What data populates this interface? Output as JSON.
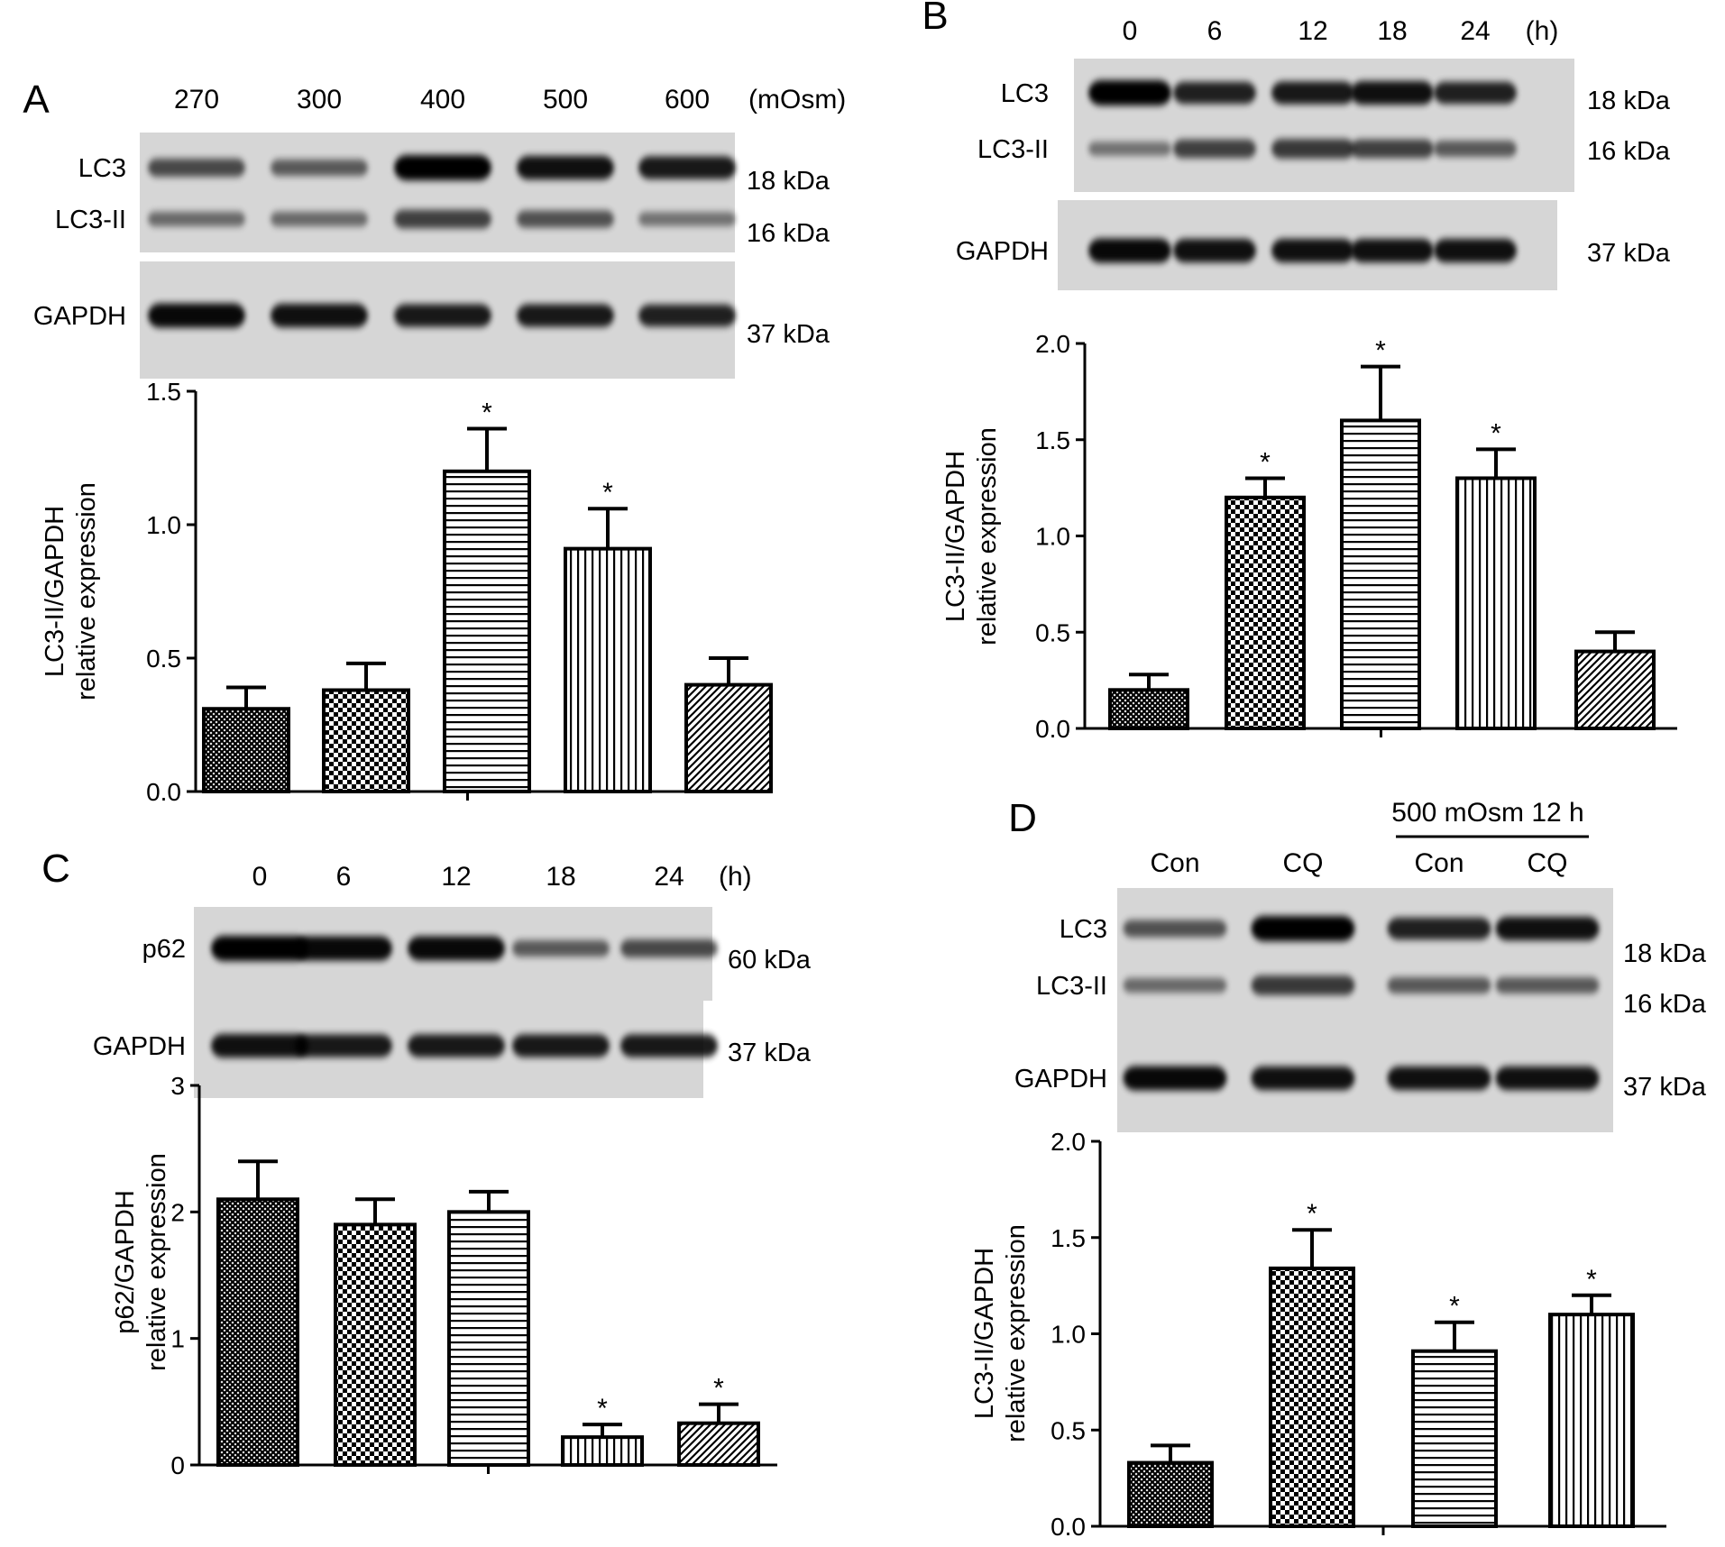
{
  "figure": {
    "background": "#ffffff",
    "bar_outline_color": "#000000",
    "blot_background": "#d6d6d6",
    "band_color": "#000000"
  },
  "chart_data": [
    {
      "panel_label": "A",
      "type": "bar",
      "lane_labels": [
        "270",
        "300",
        "400",
        "500",
        "600"
      ],
      "lane_unit": "(mOsm)",
      "blots": [
        {
          "row_labels": [
            "LC3",
            "LC3-II"
          ],
          "weights": [
            "18 kDa",
            "16 kDa"
          ],
          "band_intensity": [
            [
              0.55,
              0.45,
              1.0,
              0.9,
              0.85
            ],
            [
              0.35,
              0.35,
              0.6,
              0.5,
              0.3
            ]
          ]
        },
        {
          "row_labels": [
            "GAPDH"
          ],
          "weights": [
            "37 kDa"
          ],
          "band_intensity": [
            [
              0.95,
              0.9,
              0.85,
              0.85,
              0.8
            ]
          ]
        }
      ],
      "categories": [
        "270",
        "300",
        "400",
        "500",
        "600"
      ],
      "values": [
        0.31,
        0.38,
        1.2,
        0.91,
        0.4
      ],
      "errors": [
        0.08,
        0.1,
        0.16,
        0.15,
        0.1
      ],
      "significant": [
        false,
        false,
        true,
        true,
        false
      ],
      "patterns": [
        "crosshatch",
        "checker",
        "hlines",
        "vlines",
        "diag"
      ],
      "ylabel": "LC3-II/GAPDH",
      "ylabel2": "relative expression",
      "ylim": [
        0,
        1.5
      ],
      "ticks": [
        "0.0",
        "0.5",
        "1.0",
        "1.5"
      ],
      "tick_values": [
        0,
        0.5,
        1.0,
        1.5
      ],
      "sig_mark": "*"
    },
    {
      "panel_label": "B",
      "type": "bar",
      "lane_labels": [
        "0",
        "6",
        "12",
        "18",
        "24"
      ],
      "lane_unit": "(h)",
      "blots": [
        {
          "row_labels": [
            "LC3",
            "LC3-II"
          ],
          "weights": [
            "18 kDa",
            "16 kDa"
          ],
          "band_intensity": [
            [
              1.0,
              0.8,
              0.85,
              0.9,
              0.8
            ],
            [
              0.3,
              0.6,
              0.65,
              0.6,
              0.45
            ]
          ]
        },
        {
          "row_labels": [
            "GAPDH"
          ],
          "weights": [
            "37 kDa"
          ],
          "band_intensity": [
            [
              0.95,
              0.9,
              0.9,
              0.9,
              0.9
            ]
          ]
        }
      ],
      "categories": [
        "0",
        "6",
        "12",
        "18",
        "24"
      ],
      "values": [
        0.2,
        1.2,
        1.6,
        1.3,
        0.4
      ],
      "errors": [
        0.08,
        0.1,
        0.28,
        0.15,
        0.1
      ],
      "significant": [
        false,
        true,
        true,
        true,
        false
      ],
      "patterns": [
        "crosshatch",
        "checker",
        "hlines",
        "vlines",
        "diag"
      ],
      "ylabel": "LC3-II/GAPDH",
      "ylabel2": "relative expression",
      "ylim": [
        0,
        2.0
      ],
      "ticks": [
        "0.0",
        "0.5",
        "1.0",
        "1.5",
        "2.0"
      ],
      "tick_values": [
        0,
        0.5,
        1.0,
        1.5,
        2.0
      ],
      "sig_mark": "*"
    },
    {
      "panel_label": "C",
      "type": "bar",
      "lane_labels": [
        "0",
        "6",
        "12",
        "18",
        "24"
      ],
      "lane_unit": "(h)",
      "blots": [
        {
          "row_labels": [
            "p62"
          ],
          "weights": [
            "60 kDa"
          ],
          "band_intensity": [
            [
              1.0,
              0.95,
              0.95,
              0.45,
              0.55
            ]
          ]
        },
        {
          "row_labels": [
            "GAPDH"
          ],
          "weights": [
            "37 kDa"
          ],
          "band_intensity": [
            [
              0.9,
              0.85,
              0.85,
              0.85,
              0.85
            ]
          ]
        }
      ],
      "categories": [
        "0",
        "6",
        "12",
        "18",
        "24"
      ],
      "values": [
        2.1,
        1.9,
        2.0,
        0.22,
        0.33
      ],
      "errors": [
        0.3,
        0.2,
        0.16,
        0.1,
        0.15
      ],
      "significant": [
        false,
        false,
        false,
        true,
        true
      ],
      "patterns": [
        "crosshatch",
        "checker",
        "hlines",
        "vlines",
        "diag"
      ],
      "ylabel": "p62/GAPDH",
      "ylabel2": "relative expression",
      "ylim": [
        0,
        3
      ],
      "ticks": [
        "0",
        "1",
        "2",
        "3"
      ],
      "tick_values": [
        0,
        1,
        2,
        3
      ],
      "sig_mark": "*"
    },
    {
      "panel_label": "D",
      "type": "bar",
      "lane_labels": [
        "Con",
        "CQ",
        "Con",
        "CQ"
      ],
      "lane_group_label": "500 mOsm 12 h",
      "blots": [
        {
          "row_labels": [
            "LC3",
            "LC3-II"
          ],
          "weights": [
            "18 kDa",
            "16 kDa"
          ],
          "band_intensity": [
            [
              0.5,
              1.0,
              0.8,
              0.9
            ],
            [
              0.35,
              0.65,
              0.45,
              0.45
            ]
          ]
        },
        {
          "row_labels": [
            "GAPDH"
          ],
          "weights": [
            "37 kDa"
          ],
          "band_intensity": [
            [
              0.95,
              0.9,
              0.9,
              0.9
            ]
          ]
        }
      ],
      "categories": [
        "Con",
        "CQ",
        "Con",
        "CQ"
      ],
      "values": [
        0.33,
        1.34,
        0.91,
        1.1
      ],
      "errors": [
        0.09,
        0.2,
        0.15,
        0.1
      ],
      "significant": [
        false,
        true,
        true,
        true
      ],
      "patterns": [
        "crosshatch",
        "checker",
        "hlines",
        "vlines"
      ],
      "ylabel": "LC3-II/GAPDH",
      "ylabel2": "relative expression",
      "ylim": [
        0,
        2.0
      ],
      "ticks": [
        "0.0",
        "0.5",
        "1.0",
        "1.5",
        "2.0"
      ],
      "tick_values": [
        0,
        0.5,
        1.0,
        1.5,
        2.0
      ],
      "sig_mark": "*"
    }
  ]
}
